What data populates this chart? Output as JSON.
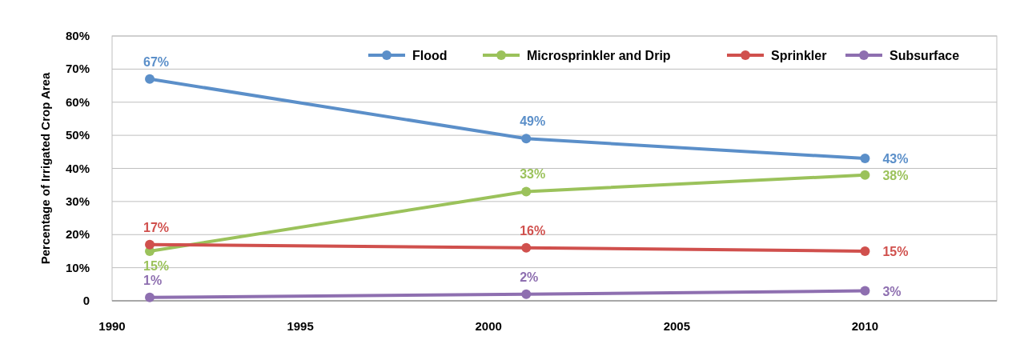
{
  "chart_data": {
    "type": "line",
    "ylabel": "Percentage of Irrigated Crop Area",
    "x": [
      1991,
      2001,
      2010
    ],
    "xlim": [
      1990,
      2013.5
    ],
    "xticks": [
      1990,
      1995,
      2000,
      2005,
      2010
    ],
    "ylim": [
      0,
      80
    ],
    "yticks": [
      0,
      {
        "value": 10,
        "label": "10%"
      },
      {
        "value": 20,
        "label": "20%"
      },
      {
        "value": 30,
        "label": "30%"
      },
      {
        "value": 40,
        "label": "40%"
      },
      {
        "value": 50,
        "label": "50%"
      },
      {
        "value": 60,
        "label": "60%"
      },
      {
        "value": 70,
        "label": "70%"
      },
      {
        "value": 80,
        "label": "80%"
      }
    ],
    "series": [
      {
        "name": "Flood",
        "color": "#5b8fc9",
        "values": [
          67,
          49,
          43
        ],
        "value_labels": [
          "67%",
          "49%",
          "43%"
        ]
      },
      {
        "name": "Microsprinkler and Drip",
        "color": "#9bc25b",
        "values": [
          15,
          33,
          38
        ],
        "value_labels": [
          "15%",
          "33%",
          "38%"
        ]
      },
      {
        "name": "Sprinkler",
        "color": "#d0504d",
        "values": [
          17,
          16,
          15
        ],
        "value_labels": [
          "17%",
          "16%",
          "15%"
        ]
      },
      {
        "name": "Subsurface",
        "color": "#8e6fb0",
        "values": [
          1,
          2,
          3
        ],
        "value_labels": [
          "1%",
          "2%",
          "3%"
        ]
      }
    ],
    "grid": "y",
    "legend": "top right",
    "marker": "circle",
    "line_style": "solid"
  }
}
